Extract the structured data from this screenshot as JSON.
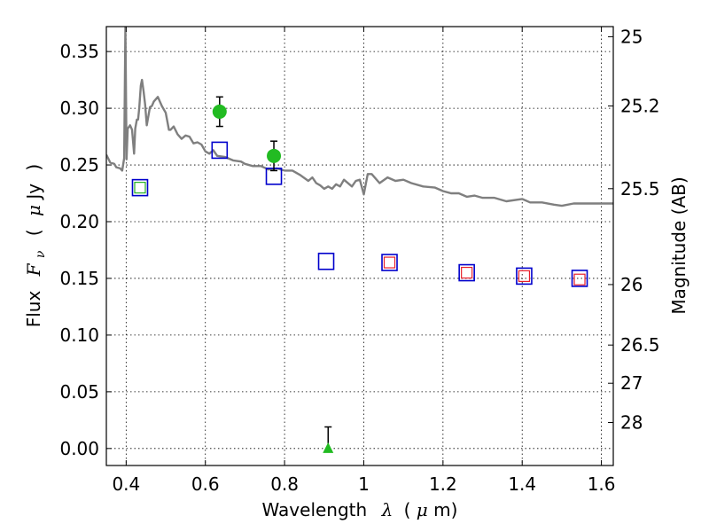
{
  "chart_data": {
    "type": "scatter",
    "xlabel": "Wavelength",
    "xlabel_symbol": "λ",
    "xlabel_unit_prefix": "(",
    "xlabel_unit_mu": "μ",
    "xlabel_unit_rest": "m)",
    "ylabel": "Flux",
    "ylabel_symbol": "F",
    "ylabel_sub": "ν",
    "ylabel_unit_open": "(",
    "ylabel_unit_mu": "μ",
    "ylabel_unit_rest": "Jy",
    "ylabel_unit_close": ")",
    "y2label": "Magnitude (AB)",
    "xlim": [
      0.35,
      1.63
    ],
    "ylim": [
      -0.015,
      0.372
    ],
    "grid": true,
    "x_ticks": [
      {
        "value": 0.4,
        "label": "0.4"
      },
      {
        "value": 0.6,
        "label": "0.6"
      },
      {
        "value": 0.8,
        "label": "0.8"
      },
      {
        "value": 1.0,
        "label": "1"
      },
      {
        "value": 1.2,
        "label": "1.2"
      },
      {
        "value": 1.4,
        "label": "1.4"
      },
      {
        "value": 1.6,
        "label": "1.6"
      }
    ],
    "y_ticks": [
      {
        "value": 0.0,
        "label": "0.00"
      },
      {
        "value": 0.05,
        "label": "0.05"
      },
      {
        "value": 0.1,
        "label": "0.10"
      },
      {
        "value": 0.15,
        "label": "0.15"
      },
      {
        "value": 0.2,
        "label": "0.20"
      },
      {
        "value": 0.25,
        "label": "0.25"
      },
      {
        "value": 0.3,
        "label": "0.30"
      },
      {
        "value": 0.35,
        "label": "0.35"
      }
    ],
    "mag_ticks": [
      {
        "value": 25,
        "label": "25"
      },
      {
        "value": 25.2,
        "label": "25.2"
      },
      {
        "value": 25.5,
        "label": "25.5"
      },
      {
        "value": 26,
        "label": "26"
      },
      {
        "value": 26.5,
        "label": "26.5"
      },
      {
        "value": 27,
        "label": "27"
      },
      {
        "value": 28,
        "label": "28"
      }
    ],
    "series": [
      {
        "marker": "line",
        "color": "#7f7f7f",
        "x": [
          0.35,
          0.36,
          0.37,
          0.375,
          0.385,
          0.39,
          0.395,
          0.398,
          0.401,
          0.404,
          0.41,
          0.415,
          0.42,
          0.423,
          0.427,
          0.43,
          0.433,
          0.437,
          0.44,
          0.444,
          0.448,
          0.452,
          0.46,
          0.465,
          0.47,
          0.48,
          0.49,
          0.5,
          0.508,
          0.512,
          0.52,
          0.53,
          0.54,
          0.55,
          0.56,
          0.57,
          0.58,
          0.59,
          0.6,
          0.61,
          0.62,
          0.63,
          0.65,
          0.67,
          0.69,
          0.7,
          0.72,
          0.74,
          0.76,
          0.78,
          0.8,
          0.82,
          0.84,
          0.86,
          0.87,
          0.88,
          0.89,
          0.9,
          0.91,
          0.92,
          0.93,
          0.94,
          0.95,
          0.97,
          0.98,
          0.99,
          1.0,
          1.01,
          1.02,
          1.04,
          1.06,
          1.08,
          1.1,
          1.12,
          1.15,
          1.18,
          1.2,
          1.22,
          1.24,
          1.26,
          1.28,
          1.3,
          1.33,
          1.36,
          1.4,
          1.42,
          1.45,
          1.48,
          1.5,
          1.53,
          1.56,
          1.6,
          1.63
        ],
        "y": [
          0.259,
          0.252,
          0.251,
          0.248,
          0.247,
          0.245,
          0.256,
          0.372,
          0.255,
          0.282,
          0.285,
          0.281,
          0.26,
          0.282,
          0.29,
          0.29,
          0.3,
          0.32,
          0.325,
          0.315,
          0.303,
          0.285,
          0.301,
          0.302,
          0.306,
          0.31,
          0.302,
          0.296,
          0.281,
          0.281,
          0.284,
          0.277,
          0.273,
          0.276,
          0.275,
          0.269,
          0.27,
          0.268,
          0.262,
          0.26,
          0.263,
          0.258,
          0.257,
          0.254,
          0.253,
          0.251,
          0.249,
          0.249,
          0.246,
          0.247,
          0.245,
          0.245,
          0.241,
          0.236,
          0.239,
          0.234,
          0.232,
          0.229,
          0.231,
          0.229,
          0.233,
          0.231,
          0.237,
          0.231,
          0.236,
          0.237,
          0.224,
          0.242,
          0.242,
          0.234,
          0.239,
          0.236,
          0.237,
          0.234,
          0.231,
          0.23,
          0.227,
          0.225,
          0.225,
          0.222,
          0.223,
          0.221,
          0.221,
          0.218,
          0.22,
          0.217,
          0.217,
          0.215,
          0.214,
          0.216,
          0.216,
          0.216,
          0.216
        ]
      },
      {
        "marker": "open-square-blue",
        "color": "#0000cc",
        "x": [
          0.435,
          0.636,
          0.773,
          0.905,
          1.065,
          1.26,
          1.405,
          1.545
        ],
        "y": [
          0.23,
          0.263,
          0.24,
          0.165,
          0.164,
          0.155,
          0.152,
          0.15
        ]
      },
      {
        "marker": "open-square-red",
        "color": "#e8202c",
        "x": [
          1.065,
          1.26,
          1.405,
          1.545
        ],
        "y": [
          0.164,
          0.155,
          0.152,
          0.149
        ]
      },
      {
        "marker": "open-square-green",
        "color": "#22b022",
        "x": [
          0.435
        ],
        "y": [
          0.23
        ]
      },
      {
        "marker": "filled-circle-green",
        "color": "#22bb22",
        "x": [
          0.636,
          0.773
        ],
        "y": [
          0.297,
          0.258
        ],
        "yerr": [
          0.013,
          0.013
        ]
      },
      {
        "marker": "filled-triangle-green",
        "color": "#22bb22",
        "x": [
          0.91
        ],
        "y": [
          0.0
        ],
        "yerr_up": [
          0.019
        ]
      }
    ]
  }
}
